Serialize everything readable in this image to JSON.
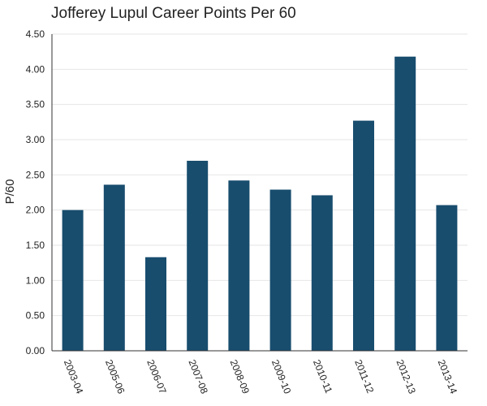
{
  "chart_data": {
    "type": "bar",
    "title": "Jofferey Lupul Career Points Per 60",
    "xlabel": "",
    "ylabel": "P/60",
    "categories": [
      "2003-04",
      "2005-06",
      "2006-07",
      "2007-08",
      "2008-09",
      "2009-10",
      "2010-11",
      "2011-12",
      "2012-13",
      "2013-14"
    ],
    "values": [
      2.0,
      2.36,
      1.33,
      2.7,
      2.42,
      2.29,
      2.21,
      3.27,
      4.18,
      2.07
    ],
    "ylim": [
      0,
      4.5
    ],
    "yticks": [
      "0.00",
      "0.50",
      "1.00",
      "1.50",
      "2.00",
      "2.50",
      "3.00",
      "3.50",
      "4.00",
      "4.50"
    ],
    "grid": true,
    "legend": "none",
    "bar_color": "#184d6e",
    "grid_color": "#e6e6e6",
    "axis_color": "#333333"
  }
}
